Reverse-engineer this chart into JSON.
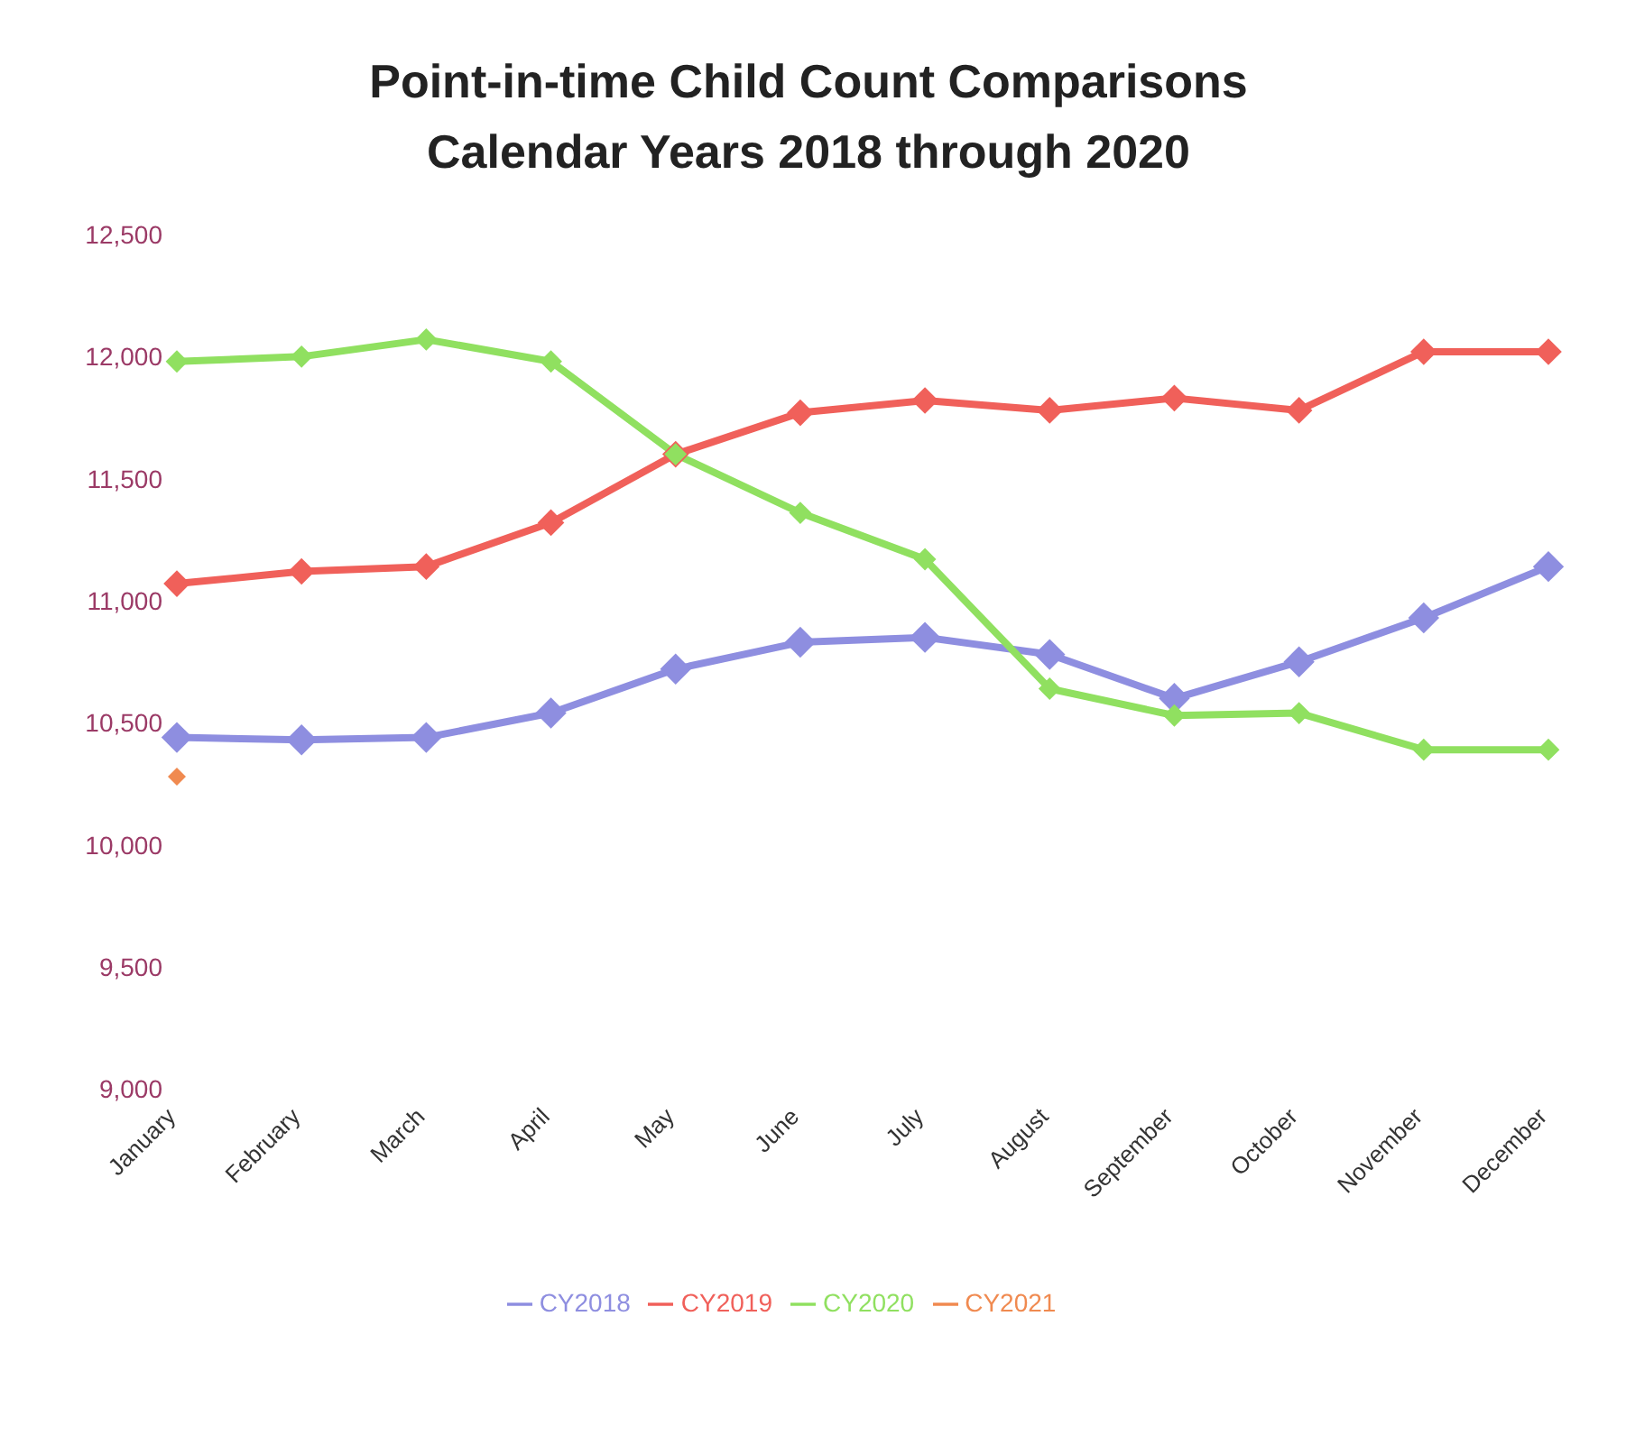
{
  "chart_data": {
    "type": "line",
    "title": "Point-in-time Child Count Comparisons",
    "subtitle": "Calendar Years 2018 through 2020",
    "categories": [
      "January",
      "February",
      "March",
      "April",
      "May",
      "June",
      "July",
      "August",
      "September",
      "October",
      "November",
      "December"
    ],
    "series": [
      {
        "name": "CY2018",
        "color": "#8e8ee0",
        "values": [
          10440,
          10430,
          10440,
          10540,
          10720,
          10830,
          10850,
          10780,
          10600,
          10750,
          10930,
          11140
        ]
      },
      {
        "name": "CY2019",
        "color": "#f0605a",
        "values": [
          11070,
          11120,
          11140,
          11320,
          11600,
          11770,
          11820,
          11780,
          11830,
          11780,
          12020,
          12020
        ]
      },
      {
        "name": "CY2020",
        "color": "#90e060",
        "values": [
          11980,
          12000,
          12070,
          11980,
          11600,
          11360,
          11170,
          10640,
          10530,
          10540,
          10390,
          10390
        ]
      },
      {
        "name": "CY2021",
        "color": "#f08a50",
        "values": [
          10280,
          null,
          null,
          null,
          null,
          null,
          null,
          null,
          null,
          null,
          null,
          null
        ]
      }
    ],
    "ylim": [
      9000,
      12500
    ],
    "yticks": [
      {
        "value": 9000,
        "label": "9,000"
      },
      {
        "value": 9500,
        "label": "9,500"
      },
      {
        "value": 10000,
        "label": "10,000"
      },
      {
        "value": 10500,
        "label": "10,500"
      },
      {
        "value": 11000,
        "label": "11,000"
      },
      {
        "value": 11500,
        "label": "11,500"
      },
      {
        "value": 12000,
        "label": "12,000"
      },
      {
        "value": 12500,
        "label": "12,500"
      }
    ],
    "grid": false,
    "legend": "bottom",
    "marker": "diamond",
    "line_style": "solid"
  }
}
